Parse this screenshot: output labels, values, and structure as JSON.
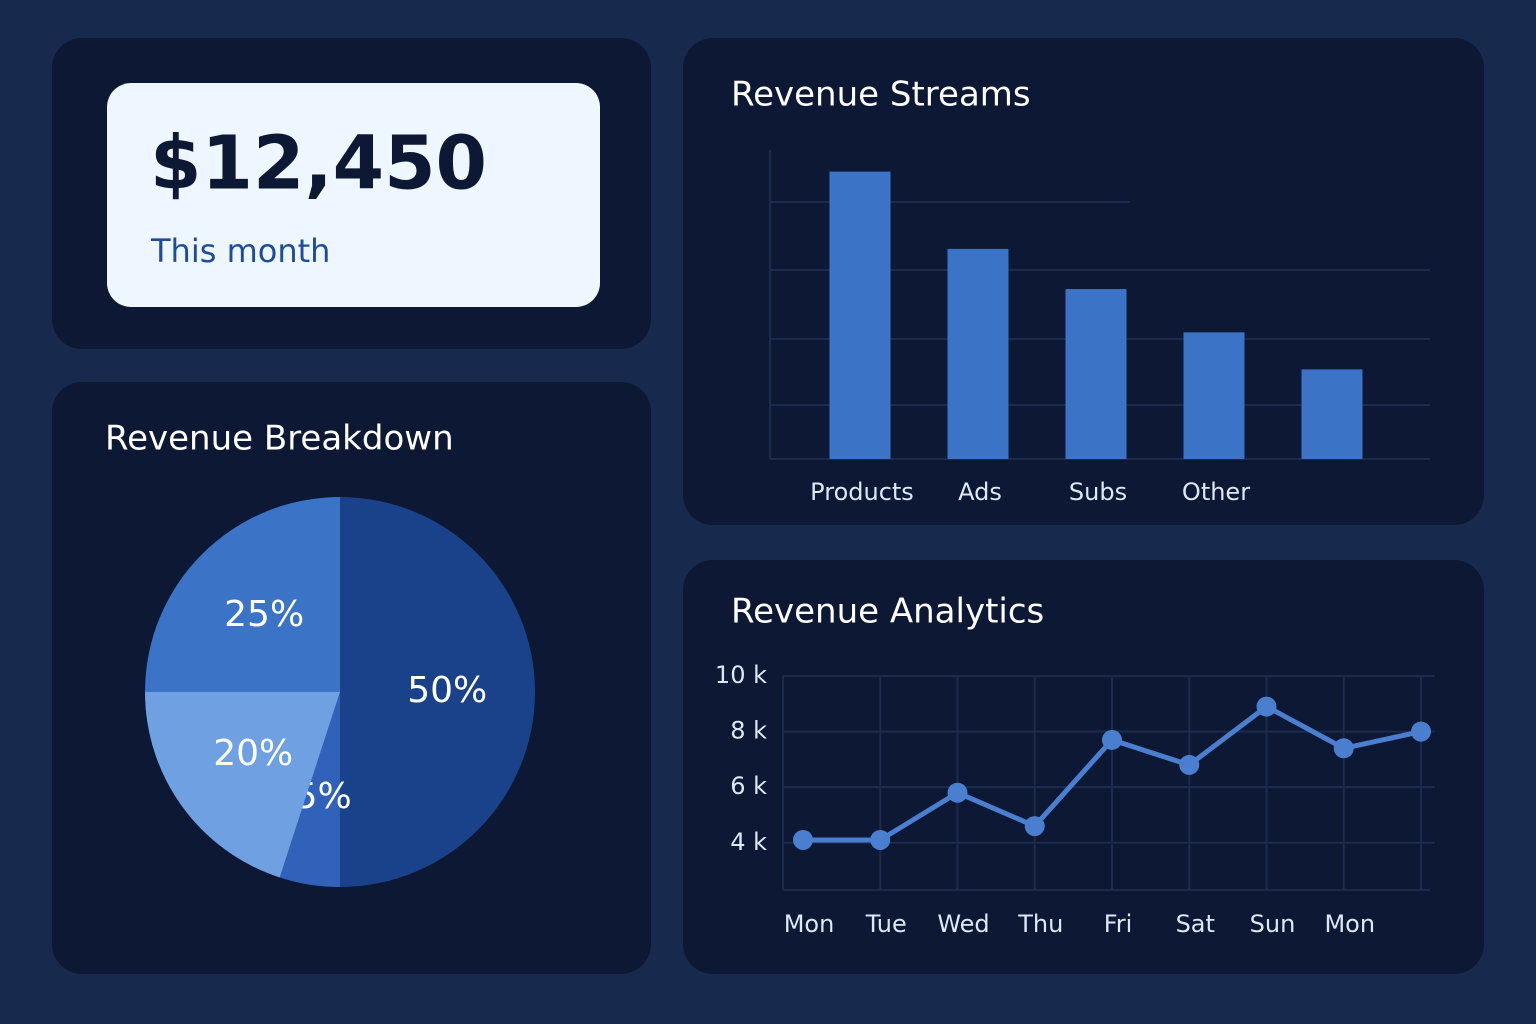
{
  "kpi": {
    "value": "$12,450",
    "label": "This month"
  },
  "chart_data": [
    {
      "type": "pie",
      "title": "Revenue Breakdown",
      "values": [
        50,
        5,
        20,
        25
      ],
      "value_labels": [
        "50%",
        "5%",
        "20%",
        "25%"
      ],
      "colors": [
        "#1a428a",
        "#2f62b8",
        "#6fa1e2",
        "#3b73c6"
      ]
    },
    {
      "type": "bar",
      "title": "Revenue Streams",
      "categories": [
        "Products",
        "Ads",
        "Subs",
        "Other",
        null
      ],
      "values": [
        93,
        68,
        55,
        41,
        29
      ],
      "ylim": [
        0,
        100
      ],
      "color": "#3b73c6",
      "grid": true
    },
    {
      "type": "line",
      "title": "Revenue Analytics",
      "categories": [
        "Mon",
        "Tue",
        "Wed",
        "Thu",
        "Fri",
        "Sat",
        "Sun",
        "Mon",
        null
      ],
      "values": [
        4.1,
        4.1,
        5.8,
        4.6,
        7.7,
        6.8,
        8.9,
        7.4,
        8.0
      ],
      "ylim": [
        2.3,
        10
      ],
      "yticks": [
        {
          "value": 10,
          "label": "10 k"
        },
        {
          "value": 8,
          "label": "8 k"
        },
        {
          "value": 6,
          "label": "6 k"
        },
        {
          "value": 4,
          "label": "4 k"
        }
      ],
      "color": "#4a7fd0",
      "grid": true
    }
  ]
}
